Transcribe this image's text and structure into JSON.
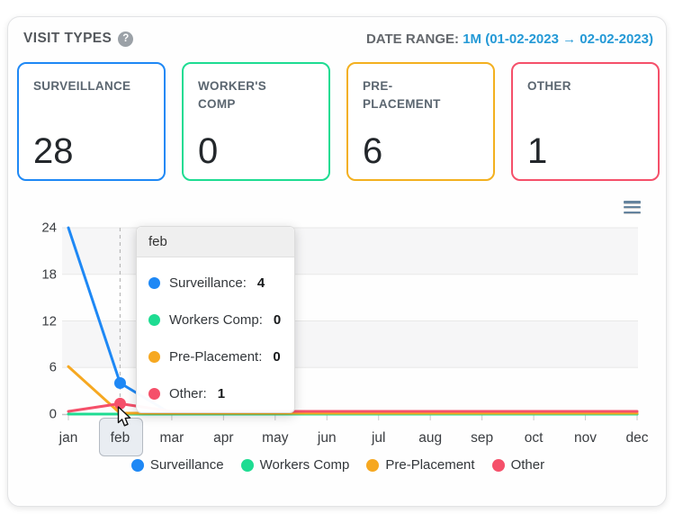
{
  "header": {
    "title": "VISIT TYPES",
    "help_icon": "?",
    "date_range_label": "DATE RANGE:",
    "date_range_value": "1M (01-02-2023 → 02-02-2023)"
  },
  "cards": [
    {
      "label": "SURVEILLANCE",
      "value": "28",
      "color": "#1e88f5"
    },
    {
      "label": "WORKER'S COMP",
      "value": "0",
      "color": "#1edc92"
    },
    {
      "label": "PRE-PLACEMENT",
      "value": "6",
      "color": "#f3b01f"
    },
    {
      "label": "OTHER",
      "value": "1",
      "color": "#f5506a"
    }
  ],
  "chart_data": {
    "type": "line",
    "x": [
      "jan",
      "feb",
      "mar",
      "apr",
      "may",
      "jun",
      "jul",
      "aug",
      "sep",
      "oct",
      "nov",
      "dec"
    ],
    "series": [
      {
        "name": "Surveillance",
        "color": "#1e88f5",
        "values": [
          24,
          4,
          0,
          0,
          0,
          0,
          0,
          0,
          0,
          0,
          0,
          0
        ]
      },
      {
        "name": "Workers Comp",
        "color": "#1edc92",
        "values": [
          0,
          0,
          0,
          0,
          0,
          0,
          0,
          0,
          0,
          0,
          0,
          0
        ]
      },
      {
        "name": "Pre-Placement",
        "color": "#f6a821",
        "values": [
          6,
          0,
          0,
          0,
          0,
          0,
          0,
          0,
          0,
          0,
          0,
          0
        ]
      },
      {
        "name": "Other",
        "color": "#f5506a",
        "values": [
          0,
          1,
          0,
          0,
          0,
          0,
          0,
          0,
          0,
          0,
          0,
          0
        ]
      }
    ],
    "ylim": [
      0,
      24
    ],
    "yticks": [
      0,
      6,
      12,
      18,
      24
    ],
    "grid": "horizontal gridlines with alternating light-gray bands",
    "legend_position": "bottom",
    "hover": {
      "x": "feb",
      "x_index": 1,
      "marker_series": [
        "Surveillance",
        "Other"
      ]
    }
  },
  "tooltip": {
    "title": "feb",
    "rows": [
      {
        "label": "Surveillance:",
        "value": "4",
        "color": "#1e88f5"
      },
      {
        "label": "Workers Comp:",
        "value": "0",
        "color": "#1edc92"
      },
      {
        "label": "Pre-Placement:",
        "value": "0",
        "color": "#f6a821"
      },
      {
        "label": "Other:",
        "value": "1",
        "color": "#f5506a"
      }
    ]
  },
  "legend": [
    {
      "label": "Surveillance",
      "color": "#1e88f5"
    },
    {
      "label": "Workers Comp",
      "color": "#1edc92"
    },
    {
      "label": "Pre-Placement",
      "color": "#f6a821"
    },
    {
      "label": "Other",
      "color": "#f5506a"
    }
  ],
  "chart_menu_icon": "hamburger-menu"
}
